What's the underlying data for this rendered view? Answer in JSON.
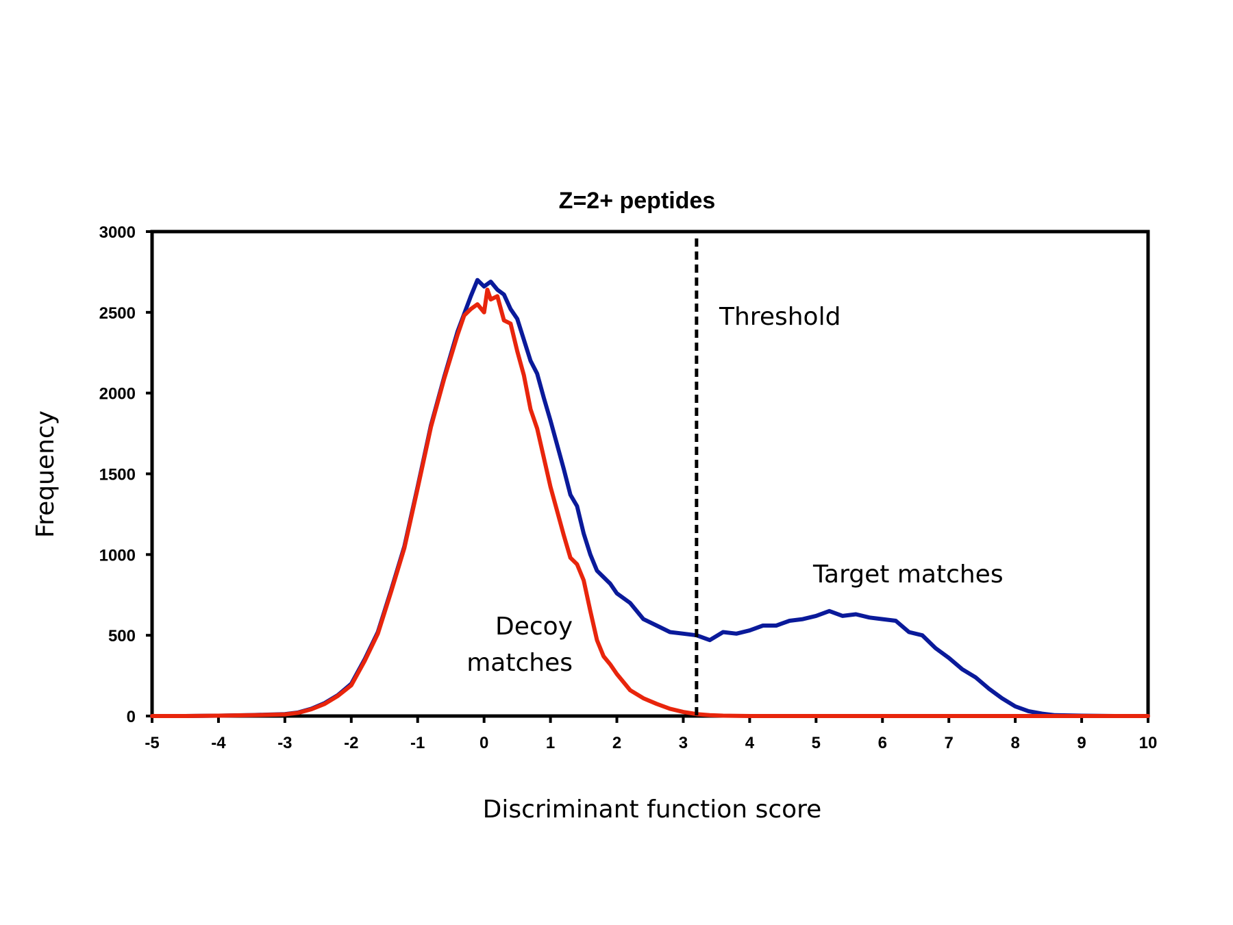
{
  "chart_data": {
    "type": "line",
    "title": "Z=2+ peptides",
    "xlabel": "Discriminant function score",
    "ylabel": "Frequency",
    "xlim": [
      -5,
      10
    ],
    "ylim": [
      0,
      3000
    ],
    "xticks": [
      "-5",
      "-4",
      "-3",
      "-2",
      "-1",
      "0",
      "1",
      "2",
      "3",
      "4",
      "5",
      "6",
      "7",
      "8",
      "9",
      "10"
    ],
    "yticks": [
      "0",
      "500",
      "1000",
      "1500",
      "2000",
      "2500",
      "3000"
    ],
    "grid": false,
    "threshold": {
      "x": 3.2,
      "label": "Threshold"
    },
    "annotations": {
      "target": "Target matches",
      "decoy_line1": "Decoy",
      "decoy_line2": "matches"
    },
    "series": [
      {
        "name": "Target matches",
        "color": "#0a1a9a",
        "x": [
          -5,
          -4.5,
          -4,
          -3.5,
          -3,
          -2.8,
          -2.6,
          -2.4,
          -2.2,
          -2,
          -1.8,
          -1.6,
          -1.4,
          -1.2,
          -1,
          -0.8,
          -0.6,
          -0.4,
          -0.2,
          -0.1,
          0,
          0.1,
          0.2,
          0.3,
          0.4,
          0.5,
          0.6,
          0.7,
          0.8,
          0.9,
          1,
          1.1,
          1.2,
          1.3,
          1.4,
          1.5,
          1.6,
          1.7,
          1.8,
          1.9,
          2,
          2.2,
          2.4,
          2.6,
          2.8,
          3,
          3.2,
          3.4,
          3.6,
          3.8,
          4,
          4.2,
          4.4,
          4.6,
          4.8,
          5,
          5.2,
          5.4,
          5.6,
          5.8,
          6,
          6.2,
          6.4,
          6.6,
          6.8,
          7,
          7.2,
          7.4,
          7.6,
          7.8,
          8,
          8.2,
          8.4,
          8.6,
          9,
          9.5,
          10
        ],
        "y": [
          0,
          0,
          2,
          6,
          12,
          22,
          45,
          80,
          130,
          200,
          350,
          520,
          780,
          1050,
          1420,
          1800,
          2100,
          2380,
          2600,
          2700,
          2660,
          2690,
          2640,
          2610,
          2520,
          2460,
          2330,
          2200,
          2120,
          1970,
          1830,
          1680,
          1530,
          1370,
          1300,
          1130,
          1000,
          900,
          860,
          820,
          760,
          700,
          600,
          560,
          520,
          510,
          500,
          470,
          520,
          510,
          530,
          560,
          560,
          590,
          600,
          620,
          650,
          620,
          630,
          610,
          600,
          590,
          520,
          500,
          420,
          360,
          290,
          240,
          170,
          110,
          60,
          30,
          15,
          5,
          2,
          0,
          0
        ]
      },
      {
        "name": "Decoy matches",
        "color": "#e8250c",
        "x": [
          -5,
          -4.5,
          -4,
          -3.5,
          -3,
          -2.8,
          -2.6,
          -2.4,
          -2.2,
          -2,
          -1.8,
          -1.6,
          -1.4,
          -1.2,
          -1,
          -0.8,
          -0.6,
          -0.4,
          -0.3,
          -0.2,
          -0.1,
          0,
          0.05,
          0.1,
          0.2,
          0.3,
          0.4,
          0.5,
          0.6,
          0.7,
          0.8,
          0.9,
          1,
          1.1,
          1.2,
          1.3,
          1.4,
          1.5,
          1.6,
          1.7,
          1.8,
          1.9,
          2,
          2.2,
          2.4,
          2.6,
          2.8,
          3,
          3.2,
          3.4,
          3.6,
          4,
          5,
          6,
          7,
          8,
          9,
          10
        ],
        "y": [
          0,
          0,
          2,
          5,
          10,
          20,
          42,
          75,
          125,
          190,
          340,
          510,
          770,
          1040,
          1410,
          1790,
          2090,
          2360,
          2480,
          2520,
          2550,
          2500,
          2640,
          2580,
          2600,
          2450,
          2430,
          2260,
          2110,
          1900,
          1780,
          1600,
          1420,
          1270,
          1120,
          980,
          940,
          840,
          650,
          470,
          370,
          320,
          260,
          160,
          110,
          75,
          45,
          25,
          12,
          5,
          2,
          0,
          0,
          0,
          0,
          0,
          0,
          0
        ]
      }
    ]
  }
}
